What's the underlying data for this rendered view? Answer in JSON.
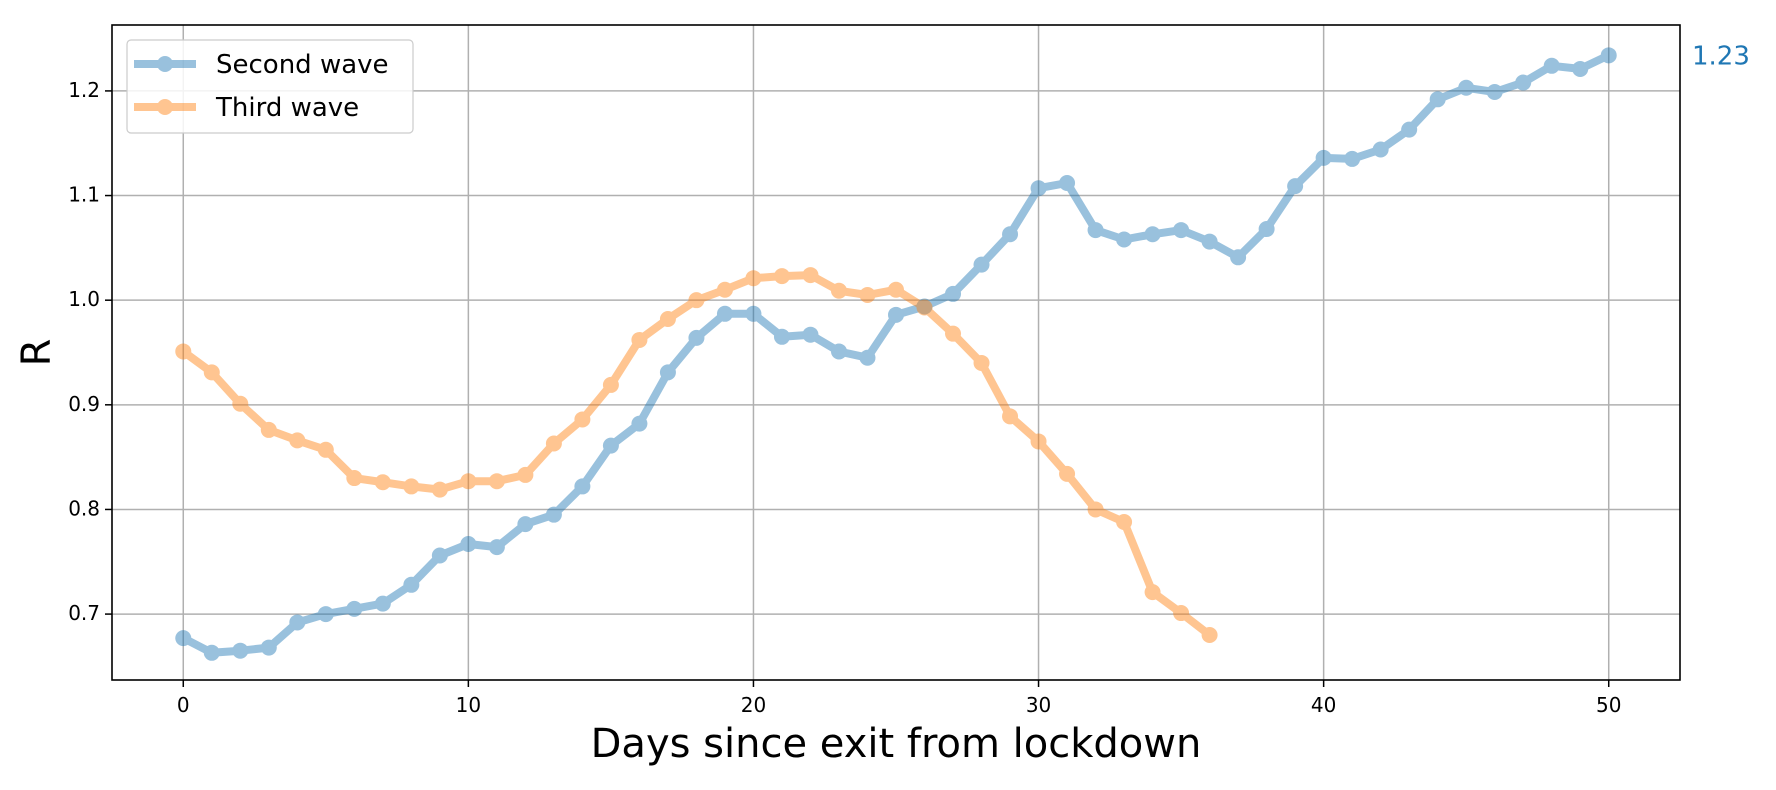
{
  "chart_data": {
    "type": "line",
    "title": "",
    "xlabel": "Days since exit from lockdown",
    "ylabel": "R",
    "xlim": [
      -2.5,
      52.5
    ],
    "ylim": [
      0.637,
      1.263
    ],
    "x_ticks": [
      0,
      10,
      20,
      30,
      40,
      50
    ],
    "y_ticks": [
      0.7,
      0.8,
      0.9,
      1.0,
      1.1,
      1.2
    ],
    "x_tick_labels": [
      "0",
      "10",
      "20",
      "30",
      "40",
      "50"
    ],
    "y_tick_labels": [
      "0.7",
      "0.8",
      "0.9",
      "1.0",
      "1.1",
      "1.2"
    ],
    "grid": true,
    "legend_position": "top-left",
    "end_annotation": "1.23",
    "series": [
      {
        "name": "Second wave",
        "color": "#1f77b4",
        "x": [
          0,
          1,
          2,
          3,
          4,
          5,
          6,
          7,
          8,
          9,
          10,
          11,
          12,
          13,
          14,
          15,
          16,
          17,
          18,
          19,
          20,
          21,
          22,
          23,
          24,
          25,
          26,
          27,
          28,
          29,
          30,
          31,
          32,
          33,
          34,
          35,
          36,
          37,
          38,
          39,
          40,
          41,
          42,
          43,
          44,
          45,
          46,
          47,
          48,
          49,
          50
        ],
        "values": [
          0.677,
          0.663,
          0.665,
          0.668,
          0.692,
          0.7,
          0.705,
          0.71,
          0.728,
          0.756,
          0.767,
          0.764,
          0.786,
          0.795,
          0.822,
          0.861,
          0.882,
          0.931,
          0.964,
          0.987,
          0.987,
          0.965,
          0.967,
          0.951,
          0.945,
          0.986,
          0.994,
          1.006,
          1.034,
          1.063,
          1.107,
          1.112,
          1.067,
          1.058,
          1.063,
          1.067,
          1.056,
          1.041,
          1.068,
          1.109,
          1.136,
          1.135,
          1.144,
          1.163,
          1.192,
          1.203,
          1.199,
          1.208,
          1.224,
          1.221,
          1.234
        ]
      },
      {
        "name": "Third wave",
        "color": "#ff7f0e",
        "x": [
          0,
          1,
          2,
          3,
          4,
          5,
          6,
          7,
          8,
          9,
          10,
          11,
          12,
          13,
          14,
          15,
          16,
          17,
          18,
          19,
          20,
          21,
          22,
          23,
          24,
          25,
          26,
          27,
          28,
          29,
          30,
          31,
          32,
          33,
          34,
          35,
          36
        ],
        "values": [
          0.951,
          0.931,
          0.901,
          0.876,
          0.866,
          0.857,
          0.83,
          0.826,
          0.822,
          0.819,
          0.827,
          0.827,
          0.833,
          0.863,
          0.886,
          0.919,
          0.962,
          0.982,
          1.0,
          1.01,
          1.021,
          1.023,
          1.024,
          1.009,
          1.005,
          1.01,
          0.993,
          0.968,
          0.94,
          0.889,
          0.865,
          0.834,
          0.8,
          0.788,
          0.721,
          0.701,
          0.68
        ]
      }
    ]
  }
}
